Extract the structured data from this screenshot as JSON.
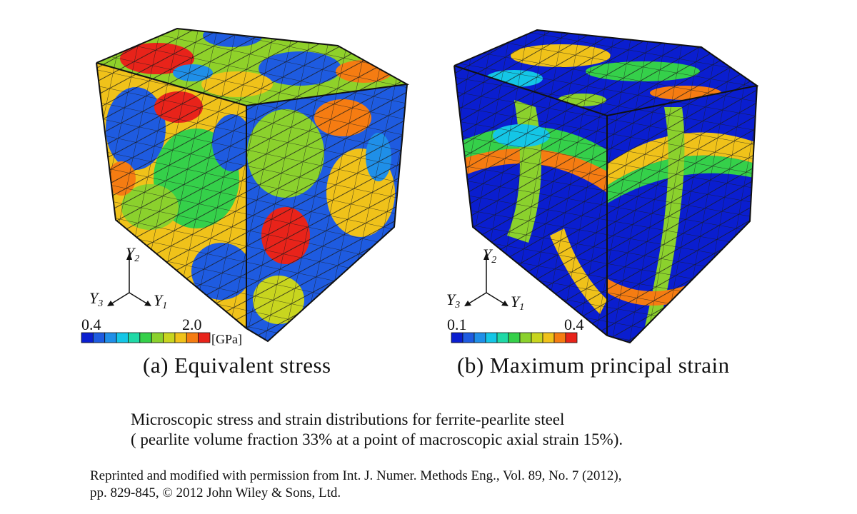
{
  "panel_a": {
    "caption": "(a) Equivalent stress",
    "colorbar": {
      "min_label": "0.4",
      "max_label": "2.0",
      "unit": "[GPa]",
      "colors": [
        "#0a1ecf",
        "#1e5be0",
        "#1f8fe8",
        "#14c6e6",
        "#1fd9a6",
        "#35d04a",
        "#8bd12d",
        "#c8d51f",
        "#f0c21a",
        "#f57c12",
        "#e8231a"
      ]
    }
  },
  "panel_b": {
    "caption": "(b) Maximum principal strain",
    "colorbar": {
      "min_label": "0.1",
      "max_label": "0.4",
      "unit": "",
      "colors": [
        "#0a1ecf",
        "#1e5be0",
        "#1f8fe8",
        "#14c6e6",
        "#1fd9a6",
        "#35d04a",
        "#8bd12d",
        "#c8d51f",
        "#f0c21a",
        "#f57c12",
        "#e8231a"
      ]
    }
  },
  "axes": {
    "y1": "Y",
    "y1_sub": "1",
    "y2": "Y",
    "y2_sub": "2",
    "y3": "Y",
    "y3_sub": "3"
  },
  "caption": {
    "line1": "Microscopic stress and strain distributions for ferrite-pearlite steel",
    "line2": "( pearlite volume fraction   33% at a point of macroscopic axial strain 15%)."
  },
  "credit": {
    "line1": "Reprinted and modified with permission from Int. J. Numer. Methods Eng., Vol. 89, No. 7 (2012),",
    "line2": "pp. 829-845, © 2012  John Wiley & Sons, Ltd."
  }
}
